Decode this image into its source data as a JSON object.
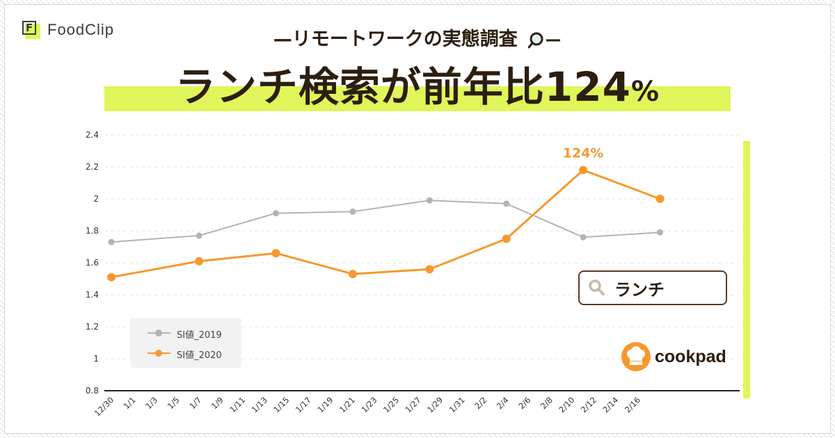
{
  "brand": {
    "name": "FoodClip",
    "mark": "F"
  },
  "header": {
    "subtitle": "—リモートワークの実態調査",
    "title_main": "ランチ検索が前年比124",
    "title_pct": "%"
  },
  "search": {
    "text": "ランチ",
    "icon": "search-icon"
  },
  "cookpad": {
    "name": "cookpad"
  },
  "colors": {
    "accent": "#e0f55a",
    "series_2019": "#b3b3b3",
    "series_2020": "#f7982e",
    "text": "#2c1e10"
  },
  "chart_data": {
    "type": "line",
    "x_ticks": [
      "12/30",
      "1/1",
      "1/3",
      "1/5",
      "1/7",
      "1/9",
      "1/11",
      "1/13",
      "1/15",
      "1/17",
      "1/19",
      "1/21",
      "1/23",
      "1/25",
      "1/27",
      "1/29",
      "1/31",
      "2/2",
      "2/4",
      "2/6",
      "2/8",
      "2/10",
      "2/12",
      "2/14",
      "2/16"
    ],
    "y_ticks": [
      "0.8",
      "1",
      "1.2",
      "1.4",
      "1.6",
      "1.8",
      "2",
      "2.2",
      "2.4"
    ],
    "ylim": [
      0.8,
      2.4
    ],
    "grid": true,
    "legend": "bottom-left",
    "series": [
      {
        "name": "SI値_2019",
        "color": "#b3b3b3",
        "x": [
          "12/30",
          "1/7",
          "1/14",
          "1/21",
          "1/28",
          "2/4",
          "2/11",
          "2/18"
        ],
        "values": [
          1.73,
          1.77,
          1.91,
          1.92,
          1.99,
          1.97,
          1.76,
          1.79
        ]
      },
      {
        "name": "SI値_2020",
        "color": "#f7982e",
        "x": [
          "12/30",
          "1/7",
          "1/14",
          "1/21",
          "1/28",
          "2/4",
          "2/11",
          "2/18"
        ],
        "values": [
          1.51,
          1.61,
          1.66,
          1.53,
          1.56,
          1.75,
          2.18,
          2.0
        ]
      }
    ],
    "annotation": {
      "text": "124%",
      "series": 1,
      "point": 6
    }
  }
}
